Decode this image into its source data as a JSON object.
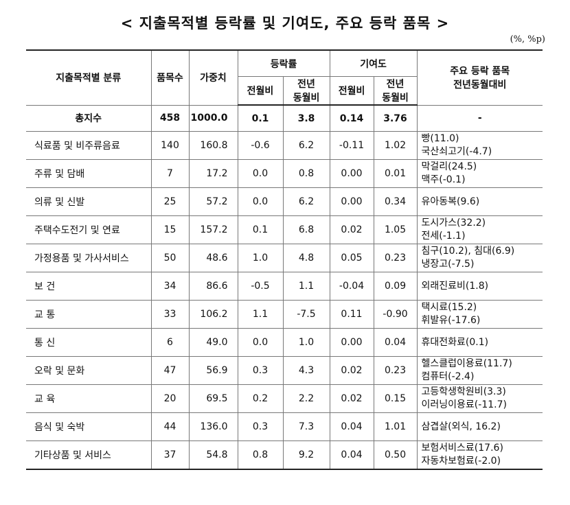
{
  "title": "< 지출목적별 등락률 및 기여도, 주요 등락 품목 >",
  "unit": "(%, %p)",
  "headers": {
    "category": "지출목적별 분류",
    "item_count": "품목수",
    "weight": "가중치",
    "change_rate": "등락률",
    "contribution": "기여도",
    "mom": "전월비",
    "yoy_line1": "전년",
    "yoy_line2": "동월비",
    "major_items_line1": "주요 등락 품목",
    "major_items_line2": "전년동월대비"
  },
  "total": {
    "name": "총지수",
    "count": "458",
    "weight": "1000.0",
    "rate_mom": "0.1",
    "rate_yoy": "3.8",
    "contrib_mom": "0.14",
    "contrib_yoy": "3.76",
    "items": "-"
  },
  "rows": [
    {
      "name": "식료품 및 비주류음료",
      "count": "140",
      "weight": "160.8",
      "rate_mom": "-0.6",
      "rate_yoy": "6.2",
      "contrib_mom": "-0.11",
      "contrib_yoy": "1.02",
      "item1": "빵(11.0)",
      "item2": "국산쇠고기(-4.7)"
    },
    {
      "name": "주류 및 담배",
      "count": "7",
      "weight": "17.2",
      "rate_mom": "0.0",
      "rate_yoy": "0.8",
      "contrib_mom": "0.00",
      "contrib_yoy": "0.01",
      "item1": "막걸리(24.5)",
      "item2": "맥주(-0.1)"
    },
    {
      "name": "의류 및 신발",
      "count": "25",
      "weight": "57.2",
      "rate_mom": "0.0",
      "rate_yoy": "6.2",
      "contrib_mom": "0.00",
      "contrib_yoy": "0.34",
      "item1": "유아동복(9.6)",
      "item2": ""
    },
    {
      "name": "주택수도전기 및 연료",
      "count": "15",
      "weight": "157.2",
      "rate_mom": "0.1",
      "rate_yoy": "6.8",
      "contrib_mom": "0.02",
      "contrib_yoy": "1.05",
      "item1": "도시가스(32.2)",
      "item2": "전세(-1.1)"
    },
    {
      "name": "가정용품 및 가사서비스",
      "count": "50",
      "weight": "48.6",
      "rate_mom": "1.0",
      "rate_yoy": "4.8",
      "contrib_mom": "0.05",
      "contrib_yoy": "0.23",
      "item1": "침구(10.2), 침대(6.9)",
      "item2": "냉장고(-7.5)"
    },
    {
      "name": "보 건",
      "count": "34",
      "weight": "86.6",
      "rate_mom": "-0.5",
      "rate_yoy": "1.1",
      "contrib_mom": "-0.04",
      "contrib_yoy": "0.09",
      "item1": "외래진료비(1.8)",
      "item2": ""
    },
    {
      "name": "교 통",
      "count": "33",
      "weight": "106.2",
      "rate_mom": "1.1",
      "rate_yoy": "-7.5",
      "contrib_mom": "0.11",
      "contrib_yoy": "-0.90",
      "item1": "택시료(15.2)",
      "item2": "휘발유(-17.6)"
    },
    {
      "name": "통 신",
      "count": "6",
      "weight": "49.0",
      "rate_mom": "0.0",
      "rate_yoy": "1.0",
      "contrib_mom": "0.00",
      "contrib_yoy": "0.04",
      "item1": "휴대전화료(0.1)",
      "item2": ""
    },
    {
      "name": "오락 및 문화",
      "count": "47",
      "weight": "56.9",
      "rate_mom": "0.3",
      "rate_yoy": "4.3",
      "contrib_mom": "0.02",
      "contrib_yoy": "0.23",
      "item1": "헬스클럽이용료(11.7)",
      "item2": "컴퓨터(-2.4)"
    },
    {
      "name": "교 육",
      "count": "20",
      "weight": "69.5",
      "rate_mom": "0.2",
      "rate_yoy": "2.2",
      "contrib_mom": "0.02",
      "contrib_yoy": "0.15",
      "item1": "고등학생학원비(3.3)",
      "item2": "이러닝이용료(-11.7)"
    },
    {
      "name": "음식 및 숙박",
      "count": "44",
      "weight": "136.0",
      "rate_mom": "0.3",
      "rate_yoy": "7.3",
      "contrib_mom": "0.04",
      "contrib_yoy": "1.01",
      "item1": "삼겹살(외식, 16.2)",
      "item2": ""
    },
    {
      "name": "기타상품 및 서비스",
      "count": "37",
      "weight": "54.8",
      "rate_mom": "0.8",
      "rate_yoy": "9.2",
      "contrib_mom": "0.04",
      "contrib_yoy": "0.50",
      "item1": "보험서비스료(17.6)",
      "item2": "자동차보험료(-2.0)"
    }
  ]
}
